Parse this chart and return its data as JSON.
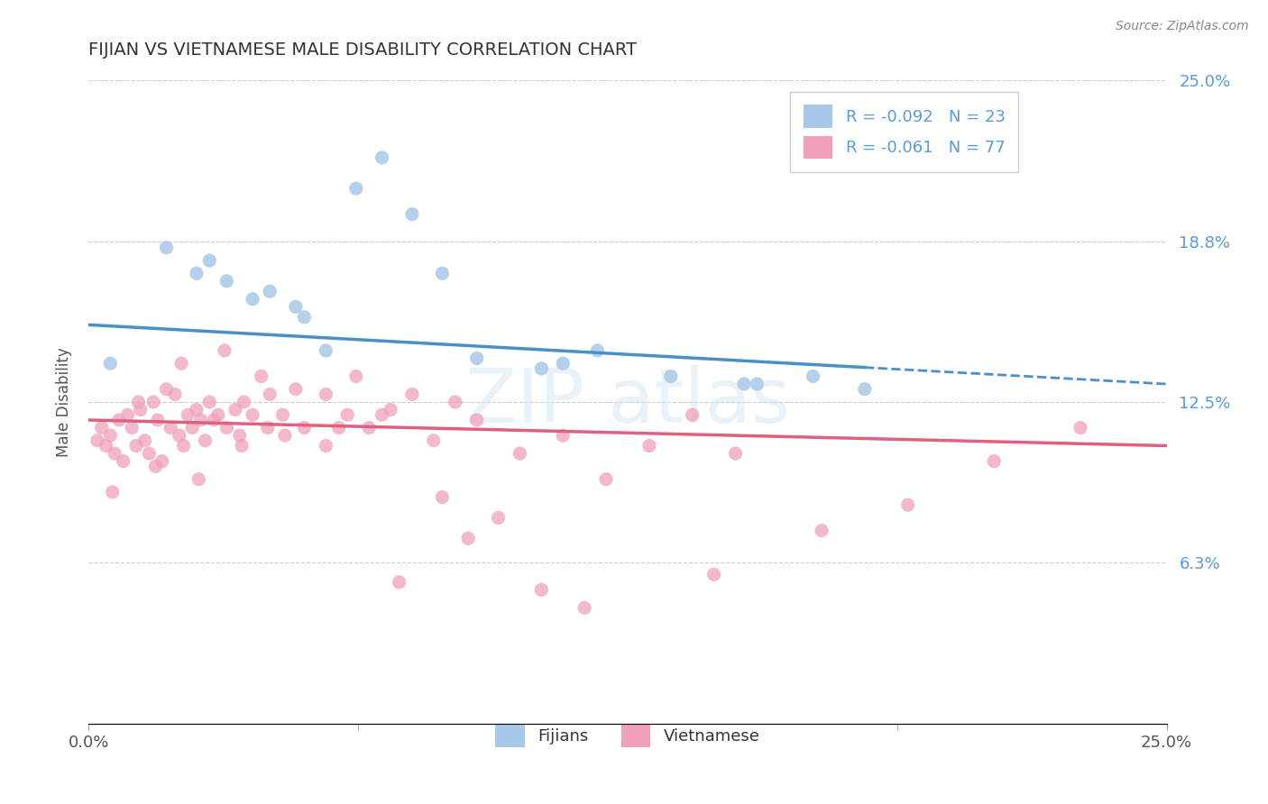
{
  "title": "FIJIAN VS VIETNAMESE MALE DISABILITY CORRELATION CHART",
  "source_text": "Source: ZipAtlas.com",
  "ylabel": "Male Disability",
  "xmin": 0.0,
  "xmax": 25.0,
  "ymin": 0.0,
  "ymax": 25.0,
  "yticks": [
    6.25,
    12.5,
    18.75,
    25.0
  ],
  "ytick_labels": [
    "6.3%",
    "12.5%",
    "18.8%",
    "25.0%"
  ],
  "fijian_color": "#a8c8e8",
  "vietnamese_color": "#f0a0b8",
  "fijian_trend_color": "#4a90c8",
  "vietnamese_trend_color": "#e06080",
  "fijian_scatter_x": [
    0.5,
    1.8,
    2.5,
    2.8,
    3.2,
    3.8,
    4.2,
    4.8,
    5.0,
    5.5,
    6.2,
    6.8,
    7.5,
    8.2,
    9.0,
    10.5,
    11.8,
    13.5,
    15.2,
    16.8,
    18.0,
    11.0,
    15.5
  ],
  "fijian_scatter_y": [
    14.0,
    18.5,
    17.5,
    18.0,
    17.2,
    16.5,
    16.8,
    16.2,
    15.8,
    14.5,
    20.8,
    22.0,
    19.8,
    17.5,
    14.2,
    13.8,
    14.5,
    13.5,
    13.2,
    13.5,
    13.0,
    14.0,
    13.2
  ],
  "vietnamese_scatter_x": [
    0.2,
    0.3,
    0.4,
    0.5,
    0.6,
    0.7,
    0.8,
    0.9,
    1.0,
    1.1,
    1.2,
    1.3,
    1.4,
    1.5,
    1.6,
    1.7,
    1.8,
    1.9,
    2.0,
    2.1,
    2.2,
    2.3,
    2.4,
    2.5,
    2.6,
    2.7,
    2.8,
    2.9,
    3.0,
    3.2,
    3.4,
    3.6,
    3.8,
    4.0,
    4.2,
    4.5,
    5.0,
    5.5,
    6.0,
    6.5,
    7.0,
    7.5,
    8.0,
    8.5,
    9.0,
    10.0,
    11.0,
    12.0,
    13.0,
    14.0,
    15.0,
    17.0,
    19.0,
    21.0,
    23.0,
    3.5,
    4.8,
    6.2,
    8.8,
    10.5,
    14.5,
    1.15,
    2.15,
    3.15,
    4.15,
    5.5,
    7.2,
    9.5,
    11.5,
    0.55,
    1.55,
    2.55,
    3.55,
    4.55,
    5.8,
    6.8,
    8.2
  ],
  "vietnamese_scatter_y": [
    11.0,
    11.5,
    10.8,
    11.2,
    10.5,
    11.8,
    10.2,
    12.0,
    11.5,
    10.8,
    12.2,
    11.0,
    10.5,
    12.5,
    11.8,
    10.2,
    13.0,
    11.5,
    12.8,
    11.2,
    10.8,
    12.0,
    11.5,
    12.2,
    11.8,
    11.0,
    12.5,
    11.8,
    12.0,
    11.5,
    12.2,
    12.5,
    12.0,
    13.5,
    12.8,
    12.0,
    11.5,
    10.8,
    12.0,
    11.5,
    12.2,
    12.8,
    11.0,
    12.5,
    11.8,
    10.5,
    11.2,
    9.5,
    10.8,
    12.0,
    10.5,
    7.5,
    8.5,
    10.2,
    11.5,
    11.2,
    13.0,
    13.5,
    7.2,
    5.2,
    5.8,
    12.5,
    14.0,
    14.5,
    11.5,
    12.8,
    5.5,
    8.0,
    4.5,
    9.0,
    10.0,
    9.5,
    10.8,
    11.2,
    11.5,
    12.0,
    8.8
  ],
  "fijian_trend_start_x": 0.0,
  "fijian_trend_end_x": 25.0,
  "fijian_solid_end_x": 18.0,
  "fijian_trend_start_y": 15.5,
  "fijian_trend_end_y": 13.2,
  "vietnamese_trend_start_x": 0.0,
  "vietnamese_trend_end_x": 25.0,
  "vietnamese_trend_start_y": 11.8,
  "vietnamese_trend_end_y": 10.8,
  "legend_label_fijian": "R = -0.092   N = 23",
  "legend_label_vietnamese": "R = -0.061   N = 77",
  "bottom_legend_fijians": "Fijians",
  "bottom_legend_vietnamese": "Vietnamese"
}
